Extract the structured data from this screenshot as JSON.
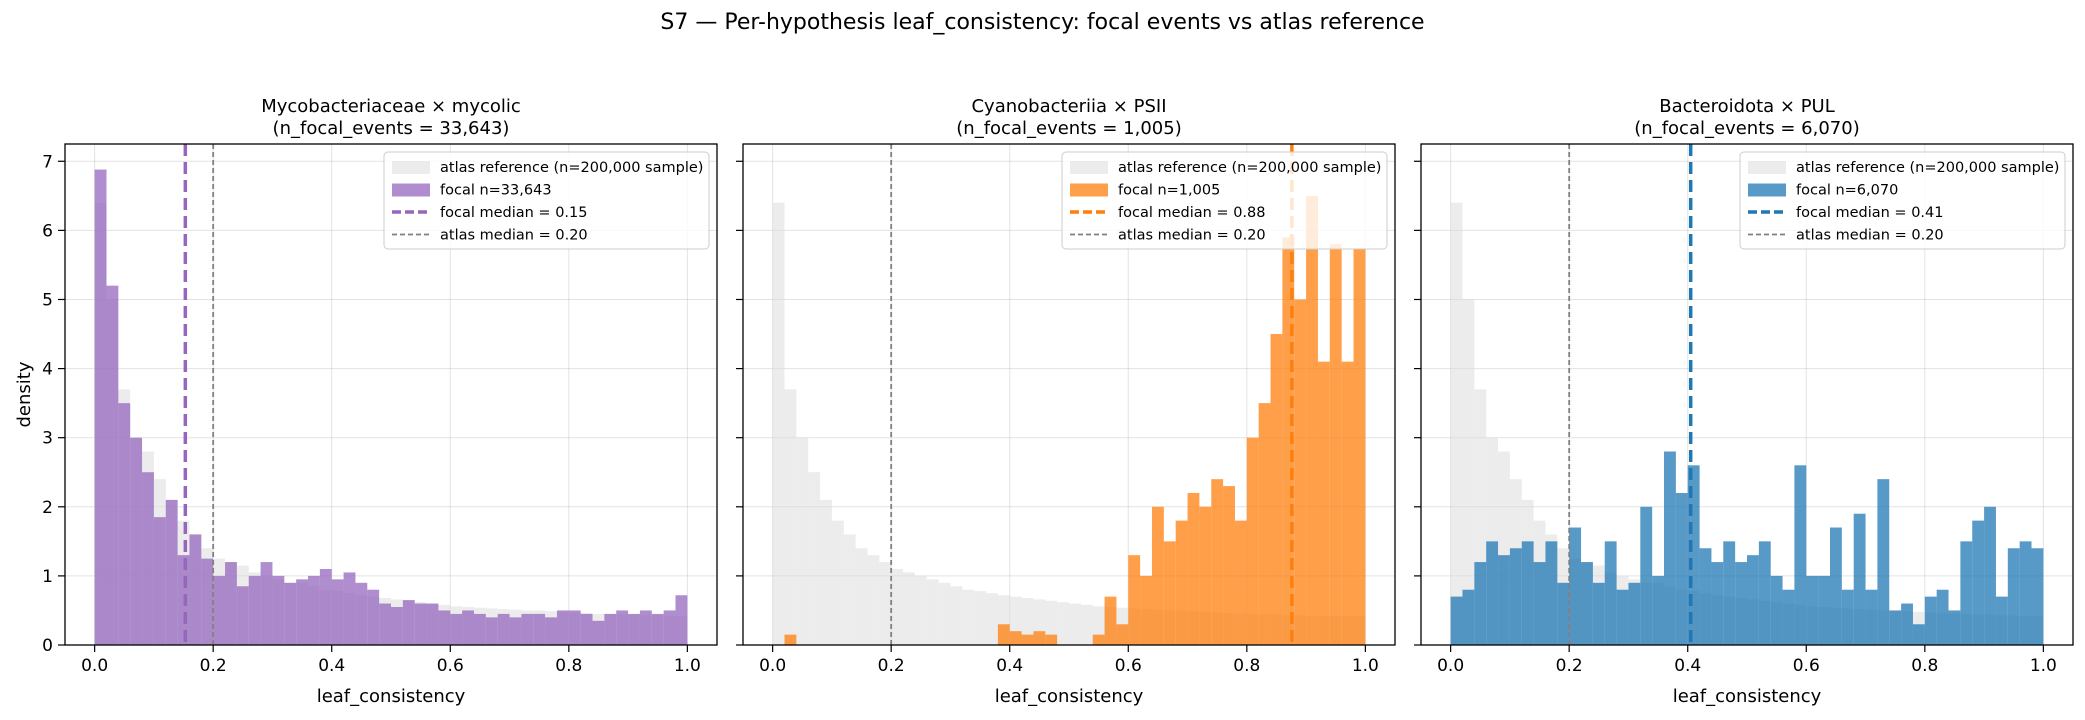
{
  "figure": {
    "suptitle": "S7 — Per-hypothesis leaf_consistency: focal events vs atlas reference"
  },
  "shared_y_label": "density",
  "reference_color": "#dcdcdc",
  "chart_data": [
    {
      "type": "bar",
      "title_line1": "Mycobacteriaceae × mycolic",
      "title_line2": "(n_focal_events = 33,643)",
      "xlabel": "leaf_consistency",
      "ylabel": "density",
      "xlim": [
        -0.05,
        1.05
      ],
      "ylim": [
        0,
        7.25
      ],
      "xticks": [
        "0.0",
        "0.2",
        "0.4",
        "0.6",
        "0.8",
        "1.0"
      ],
      "yticks": [
        "0",
        "1",
        "2",
        "3",
        "4",
        "5",
        "6",
        "7"
      ],
      "grid": true,
      "legend_position": "top-right",
      "bin_width": 0.02,
      "atlas_label": "atlas reference (n=200,000 sample)",
      "focal_label": "focal n=33,643",
      "focal_median_label": "focal median = 0.15",
      "atlas_median_label": "atlas median = 0.20",
      "focal_color": "#9467bd",
      "focal_median": 0.153,
      "atlas_median": 0.2,
      "atlas_density": [
        6.4,
        5.0,
        3.7,
        3.0,
        2.8,
        2.4,
        2.1,
        1.8,
        1.6,
        1.4,
        1.25,
        1.2,
        1.15,
        1.05,
        1.0,
        0.95,
        0.9,
        0.9,
        0.85,
        0.8,
        0.78,
        0.75,
        0.72,
        0.7,
        0.68,
        0.66,
        0.64,
        0.62,
        0.6,
        0.58,
        0.56,
        0.55,
        0.54,
        0.53,
        0.52,
        0.51,
        0.5,
        0.5,
        0.49,
        0.48,
        0.47,
        0.46,
        0.45,
        0.45,
        0.44,
        0.44,
        0.43,
        0.43,
        0.42,
        0.42
      ],
      "focal_density": [
        6.88,
        5.2,
        3.5,
        3.0,
        2.5,
        1.85,
        2.1,
        1.3,
        1.6,
        1.25,
        1.0,
        1.2,
        0.85,
        1.0,
        1.2,
        1.0,
        0.9,
        0.95,
        1.0,
        1.1,
        0.95,
        1.05,
        0.9,
        0.8,
        0.6,
        0.55,
        0.65,
        0.6,
        0.6,
        0.5,
        0.45,
        0.5,
        0.45,
        0.4,
        0.45,
        0.4,
        0.45,
        0.45,
        0.4,
        0.5,
        0.5,
        0.45,
        0.35,
        0.45,
        0.5,
        0.45,
        0.5,
        0.45,
        0.5,
        0.72
      ]
    },
    {
      "type": "bar",
      "title_line1": "Cyanobacteriia × PSII",
      "title_line2": "(n_focal_events = 1,005)",
      "xlabel": "leaf_consistency",
      "ylabel": "density",
      "xlim": [
        -0.05,
        1.05
      ],
      "ylim": [
        0,
        7.25
      ],
      "xticks": [
        "0.0",
        "0.2",
        "0.4",
        "0.6",
        "0.8",
        "1.0"
      ],
      "yticks": [
        "0",
        "1",
        "2",
        "3",
        "4",
        "5",
        "6",
        "7"
      ],
      "grid": true,
      "legend_position": "top-right",
      "bin_width": 0.02,
      "atlas_label": "atlas reference (n=200,000 sample)",
      "focal_label": "focal n=1,005",
      "focal_median_label": "focal median = 0.88",
      "atlas_median_label": "atlas median = 0.20",
      "focal_color": "#ff7f0e",
      "focal_median": 0.876,
      "atlas_median": 0.2,
      "atlas_density": [
        6.4,
        3.7,
        3.0,
        2.5,
        2.1,
        1.8,
        1.6,
        1.4,
        1.3,
        1.2,
        1.1,
        1.05,
        1.0,
        0.95,
        0.9,
        0.85,
        0.8,
        0.78,
        0.75,
        0.72,
        0.7,
        0.68,
        0.66,
        0.64,
        0.62,
        0.6,
        0.58,
        0.56,
        0.55,
        0.54,
        0.53,
        0.52,
        0.51,
        0.5,
        0.5,
        0.49,
        0.48,
        0.47,
        0.46,
        0.45,
        0.45,
        0.44,
        0.44,
        0.43,
        0.43,
        0.42,
        0.42,
        0.42,
        0.42,
        0.42
      ],
      "focal_density": [
        0,
        0.15,
        0,
        0,
        0,
        0,
        0,
        0,
        0,
        0,
        0,
        0,
        0,
        0,
        0,
        0,
        0,
        0,
        0,
        0.3,
        0.2,
        0.15,
        0.2,
        0.15,
        0,
        0,
        0,
        0.15,
        0.7,
        0.3,
        1.3,
        1.0,
        2.0,
        1.5,
        1.8,
        2.2,
        2.0,
        2.4,
        2.3,
        1.8,
        3.0,
        3.5,
        4.5,
        5.9,
        5.0,
        6.5,
        4.1,
        5.8,
        4.1,
        5.74
      ]
    },
    {
      "type": "bar",
      "title_line1": "Bacteroidota × PUL",
      "title_line2": "(n_focal_events = 6,070)",
      "xlabel": "leaf_consistency",
      "ylabel": "density",
      "xlim": [
        -0.05,
        1.05
      ],
      "ylim": [
        0,
        7.25
      ],
      "xticks": [
        "0.0",
        "0.2",
        "0.4",
        "0.6",
        "0.8",
        "1.0"
      ],
      "yticks": [
        "0",
        "1",
        "2",
        "3",
        "4",
        "5",
        "6",
        "7"
      ],
      "grid": true,
      "legend_position": "top-right",
      "bin_width": 0.02,
      "atlas_label": "atlas reference (n=200,000 sample)",
      "focal_label": "focal n=6,070",
      "focal_median_label": "focal median = 0.41",
      "atlas_median_label": "atlas median = 0.20",
      "focal_color": "#1f77b4",
      "focal_median": 0.405,
      "atlas_median": 0.2,
      "atlas_density": [
        6.4,
        5.0,
        3.7,
        3.0,
        2.8,
        2.4,
        2.1,
        1.8,
        1.6,
        1.4,
        1.25,
        1.2,
        1.15,
        1.05,
        1.0,
        0.95,
        0.9,
        0.9,
        0.85,
        0.8,
        0.78,
        0.75,
        0.72,
        0.7,
        0.68,
        0.66,
        0.64,
        0.62,
        0.6,
        0.58,
        0.56,
        0.55,
        0.54,
        0.53,
        0.52,
        0.51,
        0.5,
        0.5,
        0.49,
        0.48,
        0.47,
        0.46,
        0.45,
        0.45,
        0.44,
        0.44,
        0.43,
        0.43,
        0.42,
        0.42
      ],
      "focal_density": [
        0.7,
        0.8,
        1.2,
        1.5,
        1.3,
        1.4,
        1.5,
        1.2,
        1.5,
        0.9,
        1.7,
        1.2,
        0.9,
        1.5,
        0.8,
        0.9,
        2.0,
        1.0,
        2.8,
        2.2,
        2.6,
        1.4,
        1.2,
        1.5,
        1.2,
        1.3,
        1.5,
        1.0,
        0.8,
        2.6,
        1.0,
        1.0,
        1.7,
        0.8,
        1.9,
        0.8,
        2.4,
        0.5,
        0.6,
        0.3,
        0.7,
        0.8,
        0.5,
        1.5,
        1.8,
        2.0,
        0.7,
        1.4,
        1.5,
        1.4
      ]
    }
  ]
}
